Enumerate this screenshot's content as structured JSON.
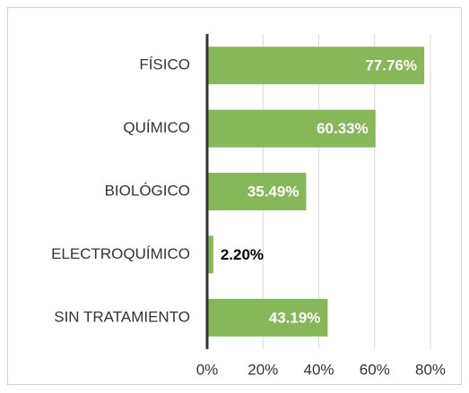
{
  "chart_data": {
    "type": "bar",
    "orientation": "horizontal",
    "categories": [
      "FÍSICO",
      "QUÍMICO",
      "BIOLÓGICO",
      "ELECTROQUÍMICO",
      "SIN TRATAMIENTO"
    ],
    "values": [
      77.76,
      60.33,
      35.49,
      2.2,
      43.19
    ],
    "value_labels": [
      "77.76%",
      "60.33%",
      "35.49%",
      "2.20%",
      "43.19%"
    ],
    "color": "#86b85a",
    "xlim": [
      0,
      80
    ],
    "xticks": [
      {
        "value": 0,
        "label": "0%"
      },
      {
        "value": 20,
        "label": "20%"
      },
      {
        "value": 40,
        "label": "40%"
      },
      {
        "value": 60,
        "label": "60%"
      },
      {
        "value": 80,
        "label": "80%"
      }
    ],
    "grid": true
  }
}
